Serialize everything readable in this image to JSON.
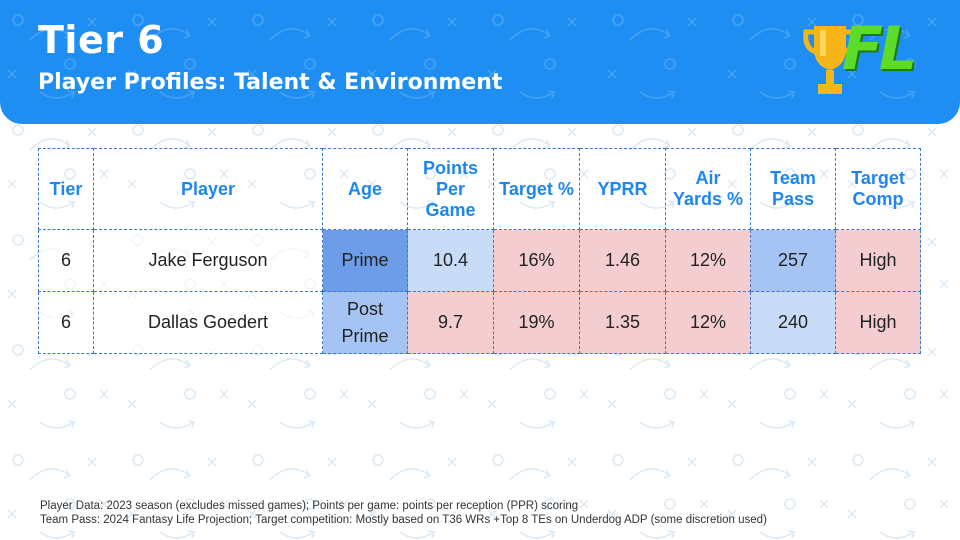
{
  "header": {
    "title": "Tier 6",
    "subtitle": "Player Profiles: Talent & Environment",
    "logo_text": "FL",
    "logo_icon": "trophy-icon"
  },
  "table": {
    "headers": [
      "Tier",
      "Player",
      "Age",
      "Points Per Game",
      "Target %",
      "YPRR",
      "Air Yards %",
      "Team Pass",
      "Target Comp"
    ],
    "rows": [
      [
        "6",
        "Jake Ferguson",
        "Prime",
        "10.4",
        "16%",
        "1.46",
        "12%",
        "257",
        "High"
      ],
      [
        "6",
        "Dallas Goedert",
        "Post Prime",
        "9.7",
        "19%",
        "1.35",
        "12%",
        "240",
        "High"
      ]
    ]
  },
  "colors": {
    "header_bg": "#1f8ef2",
    "header_text": "#1f86ef",
    "cell_red": "#f3cdcf",
    "cell_blue_light": "#c9dcf7",
    "cell_blue_medium": "#a6c4f3",
    "cell_blue_dark": "#6d9ce8",
    "logo_green": "#5ddb2a",
    "logo_gold": "#f6b619"
  },
  "footer": {
    "line1": "Player Data: 2023 season (excludes missed games); Points per game: points per reception (PPR) scoring",
    "line2": "Team Pass: 2024 Fantasy Life Projection; Target competition: Mostly based on T36 WRs +Top 8 TEs on Underdog ADP (some discretion used)"
  }
}
